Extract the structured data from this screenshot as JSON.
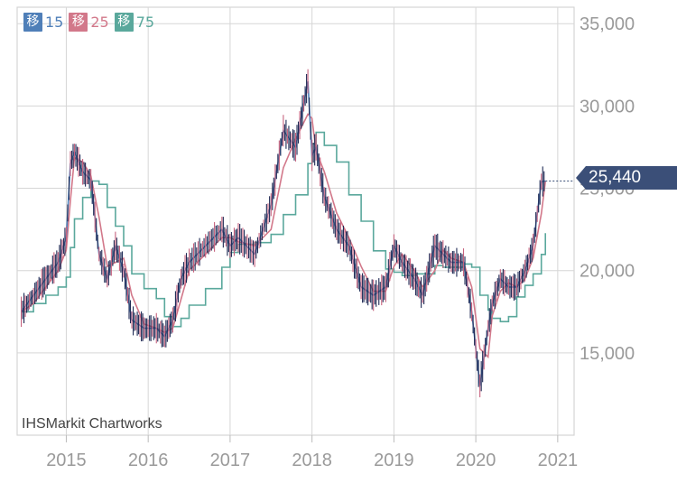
{
  "chart_data": {
    "type": "line",
    "xlim": [
      2014.4,
      2021.2
    ],
    "ylim": [
      10000,
      36000
    ],
    "grid": true,
    "x_ticks": [
      {
        "value": 2015,
        "label": "2015"
      },
      {
        "value": 2016,
        "label": "2016"
      },
      {
        "value": 2017,
        "label": "2017"
      },
      {
        "value": 2018,
        "label": "2018"
      },
      {
        "value": 2019,
        "label": "2019"
      },
      {
        "value": 2020,
        "label": "2020"
      },
      {
        "value": 2021,
        "label": "2021"
      }
    ],
    "y_ticks": [
      {
        "value": 15000,
        "label": "15,000"
      },
      {
        "value": 20000,
        "label": "20,000"
      },
      {
        "value": 25000,
        "label": "25,000"
      },
      {
        "value": 30000,
        "label": "30,000"
      },
      {
        "value": 35000,
        "label": "35,000"
      }
    ],
    "price": {
      "x": [
        2014.45,
        2014.6,
        2014.75,
        2014.9,
        2015.0,
        2015.05,
        2015.1,
        2015.2,
        2015.3,
        2015.4,
        2015.5,
        2015.6,
        2015.7,
        2015.8,
        2015.95,
        2016.1,
        2016.2,
        2016.3,
        2016.4,
        2016.5,
        2016.7,
        2016.9,
        2017.0,
        2017.1,
        2017.3,
        2017.5,
        2017.65,
        2017.8,
        2017.95,
        2018.0,
        2018.05,
        2018.15,
        2018.3,
        2018.45,
        2018.6,
        2018.75,
        2018.9,
        2019.0,
        2019.1,
        2019.25,
        2019.35,
        2019.5,
        2019.6,
        2019.7,
        2019.85,
        2019.95,
        2020.05,
        2020.15,
        2020.2,
        2020.3,
        2020.4,
        2020.5,
        2020.6,
        2020.7,
        2020.8,
        2020.85
      ],
      "y": [
        17500,
        18500,
        19500,
        20500,
        22000,
        26500,
        27200,
        26000,
        25500,
        21000,
        19500,
        21500,
        20000,
        17000,
        16500,
        16500,
        16000,
        17000,
        19500,
        20500,
        21500,
        22500,
        21500,
        22000,
        21000,
        24000,
        28500,
        27500,
        31500,
        27000,
        27500,
        24500,
        22500,
        21500,
        19000,
        18500,
        19000,
        21500,
        20500,
        19500,
        18500,
        21500,
        21000,
        20500,
        20500,
        17500,
        13000,
        16500,
        18000,
        19500,
        19000,
        19000,
        20000,
        21500,
        25400,
        25440
      ]
    },
    "series": [
      {
        "name": "15",
        "color": "#4f7fb8",
        "window": 1
      },
      {
        "name": "25",
        "color": "#d2788a",
        "window": 2
      },
      {
        "name": "75",
        "color": "#5aa89c",
        "window": 5
      }
    ],
    "last_value_label": "25,440",
    "last_value": 25440,
    "watermark": "IHSMarkit Chartworks"
  },
  "legend": [
    {
      "glyph": "移",
      "name": "15",
      "color": "#4f7fb8"
    },
    {
      "glyph": "移",
      "name": "25",
      "color": "#d2788a"
    },
    {
      "glyph": "移",
      "name": "75",
      "color": "#5aa89c"
    }
  ],
  "colors": {
    "price": "#1f2a55",
    "badge": "#3b4f78",
    "grid": "#d6d6d6",
    "axis_text": "#9a9a9a"
  }
}
